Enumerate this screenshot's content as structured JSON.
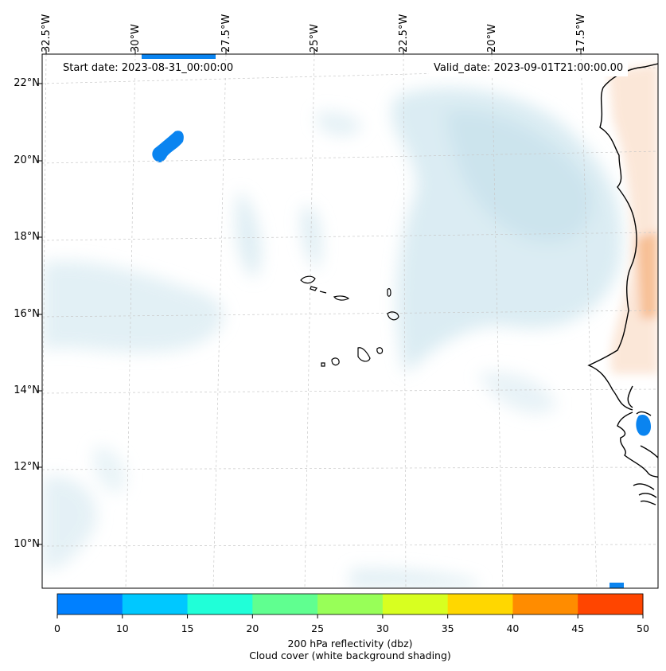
{
  "map": {
    "start_date": "Start date: 2023-08-31_00:00:00",
    "valid_date": "Valid_date: 2023-09-01T21:00:00.00",
    "longitude_labels": [
      "32.5°W",
      "30°W",
      "27.5°W",
      "25°W",
      "22.5°W",
      "20°W",
      "17.5°W"
    ],
    "latitude_labels": [
      "22°N",
      "20°N",
      "18°N",
      "16°N",
      "14°N",
      "12°N",
      "10°N"
    ],
    "features": [
      "cape-verde-islands",
      "west-africa-coastline",
      "cloud-cover-shading",
      "reflectivity-cells"
    ]
  },
  "colorbar": {
    "ticks": [
      "0",
      "10",
      "15",
      "20",
      "25",
      "30",
      "35",
      "40",
      "45",
      "50"
    ],
    "colors": [
      "#0080ff",
      "#00c8ff",
      "#20ffd8",
      "#60ff90",
      "#98ff58",
      "#d8ff20",
      "#ffd700",
      "#ff8c00",
      "#ff4500"
    ],
    "label": "200 hPa reflectivity (dbz)",
    "sublabel": "Cloud cover (white background shading)"
  }
}
